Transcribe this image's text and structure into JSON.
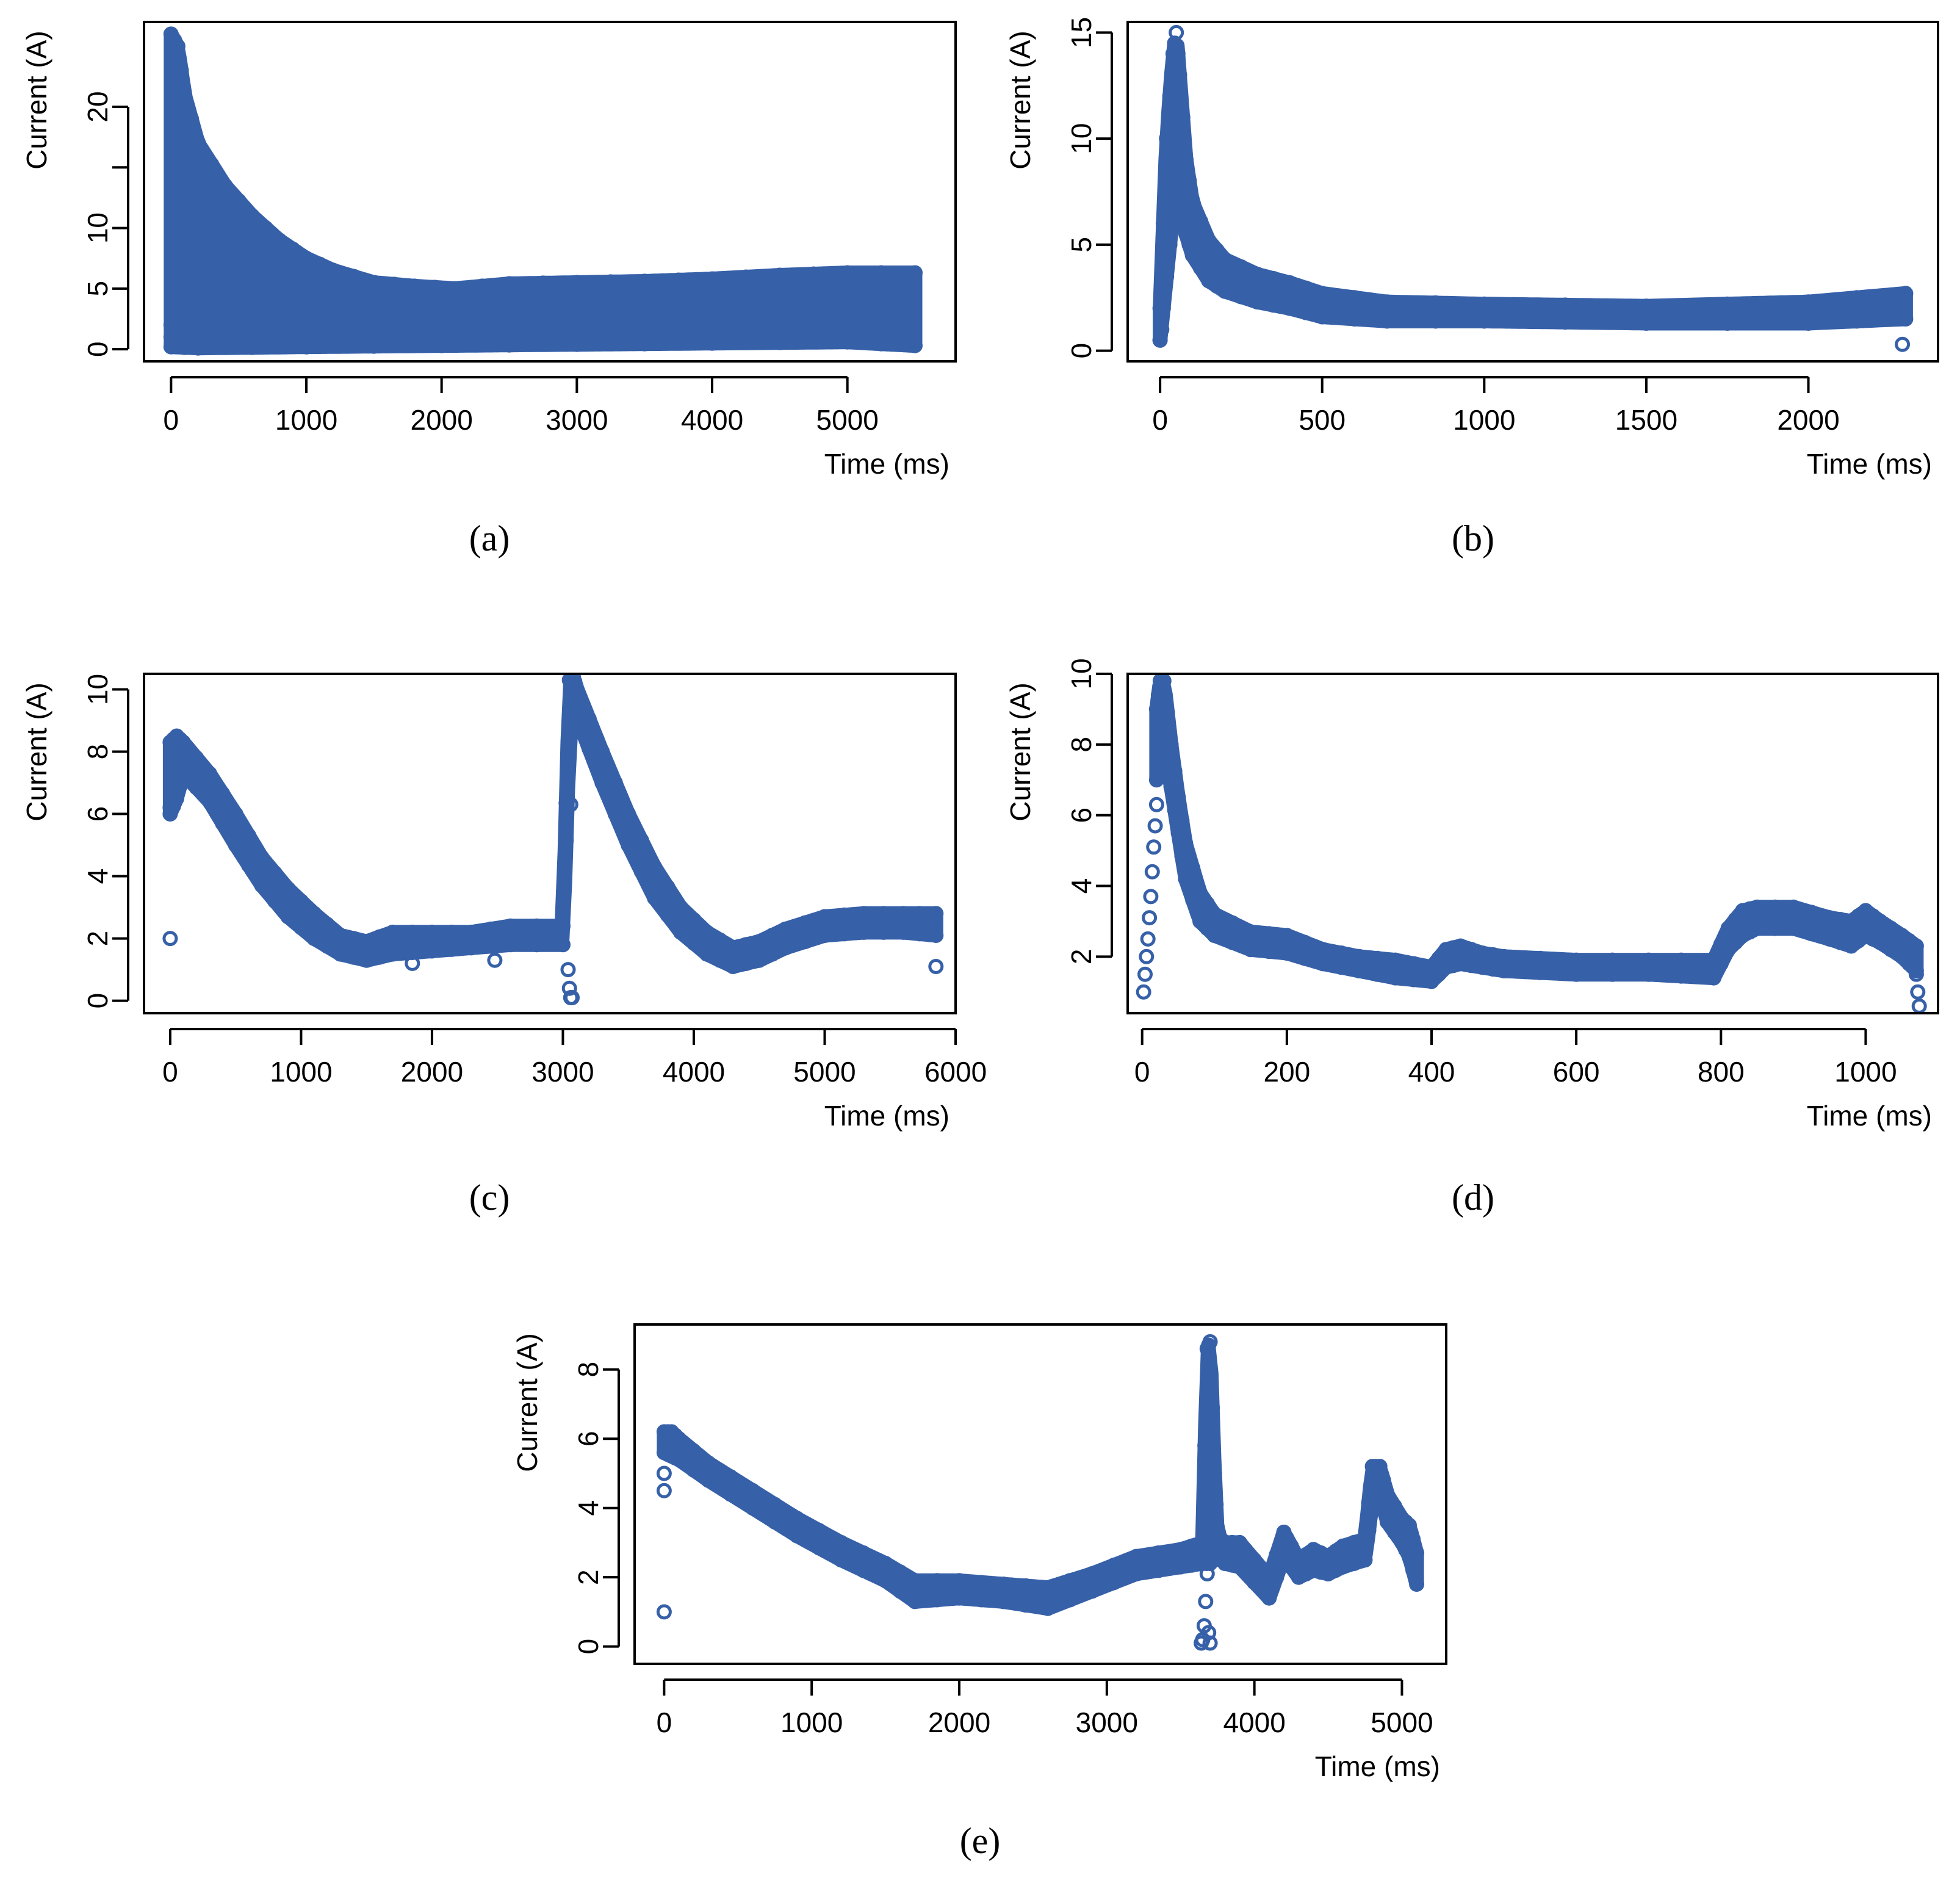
{
  "figure": {
    "point_color": "#3660A8",
    "axis_color": "#000000",
    "background": "#FFFFFF"
  },
  "chart_data": [
    {
      "id": "a",
      "type": "scatter",
      "caption": "(a)",
      "xlabel": "Time (ms)",
      "ylabel": "Current (A)",
      "xlim": [
        -200,
        5800
      ],
      "ylim": [
        -1,
        27
      ],
      "xticks": [
        0,
        1000,
        2000,
        3000,
        4000,
        5000
      ],
      "yticks": [
        0,
        5,
        10,
        15,
        20
      ],
      "ytick_labels": [
        "0",
        "5",
        "10",
        "",
        "20"
      ],
      "series": [
        {
          "name": "upper envelope",
          "x": [
            0,
            50,
            100,
            200,
            400,
            600,
            800,
            1000,
            1200,
            1500,
            1800,
            2100,
            2500,
            3000,
            3500,
            4000,
            4500,
            5000,
            5500
          ],
          "y": [
            26,
            25,
            21,
            17,
            13.5,
            11,
            9,
            7.5,
            6.5,
            5.5,
            5.2,
            5,
            5.4,
            5.5,
            5.6,
            5.8,
            6.1,
            6.3,
            6.3
          ]
        },
        {
          "name": "lower envelope",
          "x": [
            0,
            200,
            1000,
            2000,
            3000,
            4000,
            5000,
            5500
          ],
          "y": [
            0.2,
            0.1,
            0.2,
            0.3,
            0.4,
            0.5,
            0.6,
            0.3
          ]
        },
        {
          "name": "outliers",
          "x": [
            0,
            0,
            10,
            5480
          ],
          "y": [
            1,
            2,
            4,
            0.5
          ]
        }
      ]
    },
    {
      "id": "b",
      "type": "scatter",
      "caption": "(b)",
      "xlabel": "Time (ms)",
      "ylabel": "Current (A)",
      "xlim": [
        -100,
        2400
      ],
      "ylim": [
        -0.5,
        15.5
      ],
      "xticks": [
        0,
        500,
        1000,
        1500,
        2000
      ],
      "yticks": [
        0,
        5,
        10,
        15
      ],
      "ytick_labels": [
        "0",
        "5",
        "10",
        "15"
      ],
      "series": [
        {
          "name": "upper envelope",
          "x": [
            0,
            20,
            40,
            50,
            60,
            80,
            100,
            150,
            200,
            300,
            400,
            500,
            700,
            1000,
            1500,
            2000,
            2300
          ],
          "y": [
            2,
            10,
            14,
            15,
            13,
            9,
            7,
            5.2,
            4.3,
            3.6,
            3.2,
            2.7,
            2.3,
            2.2,
            2.1,
            2.3,
            2.7
          ]
        },
        {
          "name": "lower envelope",
          "x": [
            0,
            20,
            40,
            60,
            80,
            100,
            150,
            200,
            300,
            400,
            500,
            700,
            1000,
            1500,
            2000,
            2300
          ],
          "y": [
            0.5,
            3.5,
            6.5,
            6.5,
            5.5,
            4.5,
            3.3,
            2.8,
            2.3,
            2,
            1.6,
            1.4,
            1.4,
            1.3,
            1.3,
            1.5
          ]
        },
        {
          "name": "outliers",
          "x": [
            0,
            5,
            2290
          ],
          "y": [
            0.5,
            1,
            0.3
          ]
        }
      ]
    },
    {
      "id": "c",
      "type": "scatter",
      "caption": "(c)",
      "xlabel": "Time (ms)",
      "ylabel": "Current (A)",
      "xlim": [
        -200,
        6000
      ],
      "ylim": [
        -0.4,
        10.5
      ],
      "xticks": [
        0,
        1000,
        2000,
        3000,
        4000,
        5000,
        6000
      ],
      "yticks": [
        0,
        2,
        4,
        6,
        8,
        10
      ],
      "ytick_labels": [
        "0",
        "2",
        "4",
        "6",
        "8",
        "10"
      ],
      "series": [
        {
          "name": "upper envelope",
          "x": [
            0,
            50,
            100,
            300,
            500,
            700,
            900,
            1100,
            1300,
            1500,
            1700,
            2000,
            2300,
            2600,
            3000,
            3050,
            3080,
            3100,
            3300,
            3500,
            3700,
            3900,
            4100,
            4300,
            4500,
            4700,
            5000,
            5300,
            5600,
            5850
          ],
          "y": [
            8.3,
            8.5,
            8.3,
            7.3,
            6,
            4.6,
            3.6,
            2.8,
            2.1,
            1.9,
            2.2,
            2.2,
            2.2,
            2.4,
            2.4,
            10.3,
            10.4,
            10.1,
            8,
            6,
            4.3,
            3,
            2.2,
            1.7,
            1.9,
            2.3,
            2.7,
            2.8,
            2.8,
            2.8
          ]
        },
        {
          "name": "lower envelope",
          "x": [
            0,
            50,
            100,
            300,
            500,
            700,
            900,
            1100,
            1300,
            1500,
            1700,
            2000,
            2300,
            2600,
            3000,
            3050,
            3080,
            3100,
            3300,
            3500,
            3700,
            3900,
            4100,
            4300,
            4500,
            4700,
            5000,
            5300,
            5600,
            5850
          ],
          "y": [
            6,
            6.5,
            7.3,
            6.4,
            5,
            3.7,
            2.7,
            2,
            1.5,
            1.3,
            1.5,
            1.6,
            1.7,
            1.8,
            1.8,
            8.5,
            9,
            9.2,
            7,
            5,
            3.3,
            2.2,
            1.5,
            1.1,
            1.3,
            1.7,
            2.1,
            2.2,
            2.2,
            2.1
          ]
        },
        {
          "name": "outliers",
          "x": [
            0,
            0,
            1850,
            2480,
            3040,
            3050,
            3060,
            3070,
            3060,
            5850
          ],
          "y": [
            2,
            6.2,
            1.2,
            1.3,
            1,
            0.4,
            0.1,
            0.1,
            6.3,
            1.1
          ]
        }
      ]
    },
    {
      "id": "d",
      "type": "scatter",
      "caption": "(d)",
      "xlabel": "Time (ms)",
      "ylabel": "Current (A)",
      "xlim": [
        -20,
        1100
      ],
      "ylim": [
        0.4,
        10
      ],
      "xticks": [
        0,
        200,
        400,
        600,
        800,
        1000
      ],
      "yticks": [
        2,
        4,
        6,
        8,
        10
      ],
      "ytick_labels": [
        "2",
        "4",
        "6",
        "8",
        "10"
      ],
      "series": [
        {
          "name": "upper envelope",
          "x": [
            20,
            25,
            30,
            40,
            50,
            60,
            80,
            100,
            150,
            200,
            250,
            300,
            350,
            400,
            420,
            440,
            470,
            500,
            600,
            700,
            790,
            810,
            830,
            850,
            900,
            950,
            980,
            1000,
            1020,
            1050,
            1070
          ],
          "y": [
            9,
            9.8,
            9.8,
            8,
            6.5,
            5.2,
            3.8,
            3.2,
            2.7,
            2.6,
            2.2,
            2,
            1.9,
            1.7,
            2.2,
            2.3,
            2.1,
            2,
            1.9,
            1.9,
            1.9,
            2.8,
            3.3,
            3.4,
            3.4,
            3.1,
            3,
            3.3,
            3,
            2.6,
            2.3
          ]
        },
        {
          "name": "lower envelope",
          "x": [
            20,
            30,
            40,
            50,
            60,
            80,
            100,
            150,
            200,
            250,
            300,
            350,
            400,
            420,
            440,
            470,
            500,
            600,
            700,
            790,
            810,
            830,
            850,
            900,
            950,
            980,
            1000,
            1020,
            1050,
            1070
          ],
          "y": [
            7,
            8,
            6.8,
            5.5,
            4.2,
            3,
            2.6,
            2.2,
            2.1,
            1.8,
            1.6,
            1.4,
            1.3,
            1.7,
            1.8,
            1.7,
            1.6,
            1.5,
            1.5,
            1.4,
            2.2,
            2.6,
            2.8,
            2.8,
            2.5,
            2.3,
            2.6,
            2.4,
            2,
            1.6
          ]
        },
        {
          "name": "outliers",
          "x": [
            2,
            4,
            6,
            8,
            10,
            12,
            14,
            16,
            18,
            20,
            1070,
            1072,
            1074
          ],
          "y": [
            1,
            1.5,
            2,
            2.5,
            3.1,
            3.7,
            4.4,
            5.1,
            5.7,
            6.3,
            1.5,
            1,
            0.6
          ]
        }
      ]
    },
    {
      "id": "e",
      "type": "scatter",
      "caption": "(e)",
      "xlabel": "Time (ms)",
      "ylabel": "Current (A)",
      "xlim": [
        -200,
        5300
      ],
      "ylim": [
        -0.5,
        9.3
      ],
      "xticks": [
        0,
        1000,
        2000,
        3000,
        4000,
        5000
      ],
      "yticks": [
        0,
        2,
        4,
        6,
        8
      ],
      "ytick_labels": [
        "0",
        "2",
        "4",
        "6",
        "8"
      ],
      "series": [
        {
          "name": "upper envelope",
          "x": [
            0,
            50,
            100,
            300,
            600,
            900,
            1200,
            1500,
            1700,
            2000,
            2300,
            2600,
            2900,
            3200,
            3500,
            3650,
            3680,
            3700,
            3730,
            3750,
            3800,
            3900,
            4100,
            4200,
            4300,
            4400,
            4500,
            4600,
            4750,
            4800,
            4850,
            4900,
            5000,
            5050,
            5100
          ],
          "y": [
            6.2,
            6.2,
            6,
            5.3,
            4.5,
            3.7,
            3,
            2.4,
            1.9,
            1.9,
            1.8,
            1.7,
            2.1,
            2.6,
            2.8,
            3,
            8.6,
            8.8,
            5,
            3.2,
            3,
            3,
            2,
            3.3,
            2.5,
            2.8,
            2.6,
            2.9,
            3.1,
            5.2,
            5.2,
            4.4,
            3.7,
            3.5,
            2.7
          ]
        },
        {
          "name": "lower envelope",
          "x": [
            0,
            50,
            100,
            300,
            600,
            900,
            1200,
            1500,
            1700,
            2000,
            2300,
            2600,
            2900,
            3200,
            3500,
            3650,
            3700,
            3750,
            3800,
            3900,
            4100,
            4200,
            4300,
            4400,
            4500,
            4600,
            4750,
            4800,
            4850,
            4900,
            5000,
            5050,
            5100
          ],
          "y": [
            5.6,
            5.5,
            5.4,
            4.8,
            4,
            3.2,
            2.5,
            1.9,
            1.3,
            1.4,
            1.3,
            1.1,
            1.6,
            2.1,
            2.3,
            2.4,
            2.4,
            2.6,
            2.4,
            2.3,
            1.4,
            2.6,
            2,
            2.2,
            2.1,
            2.3,
            2.5,
            4.2,
            4.4,
            3.6,
            3,
            2.6,
            1.8
          ]
        },
        {
          "name": "outliers",
          "x": [
            0,
            0,
            0,
            3640,
            3650,
            3660,
            3670,
            3680,
            3690,
            3700
          ],
          "y": [
            1,
            4.5,
            5,
            0.1,
            0.2,
            0.6,
            1.3,
            2.1,
            0.4,
            0.1
          ]
        }
      ]
    }
  ]
}
